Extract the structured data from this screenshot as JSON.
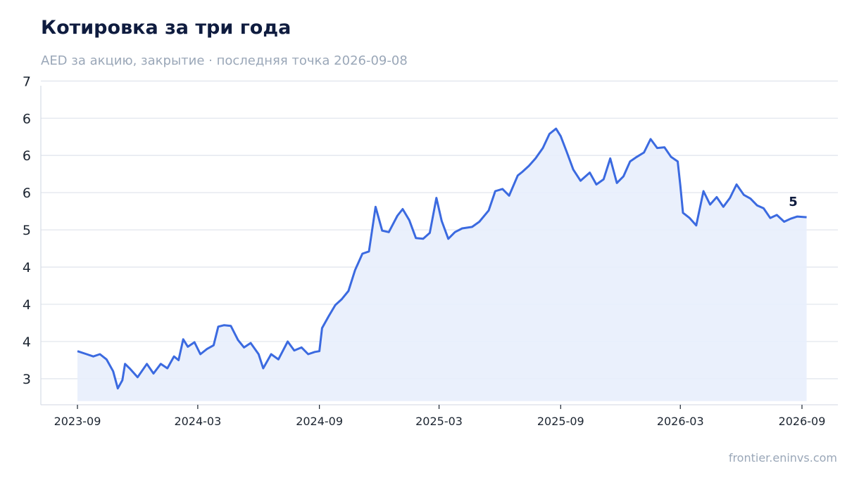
{
  "header": {
    "title": "Котировка за три года",
    "subtitle": "AED за акцию, закрытие · последняя точка 2026-09-08"
  },
  "footer": {
    "source": "frontier.eninvs.com"
  },
  "colors": {
    "line": "#3b6ae0",
    "fill": "#e8eefc",
    "grid": "#e2e6ee",
    "title": "#0f1c3f",
    "muted": "#9aa7b8"
  },
  "chart_data": {
    "type": "area",
    "ylim": [
      2.65,
      7.05
    ],
    "y_ticks": [
      {
        "value": 3.0,
        "label": "3"
      },
      {
        "value": 3.5,
        "label": "4"
      },
      {
        "value": 4.0,
        "label": "4"
      },
      {
        "value": 4.5,
        "label": "4"
      },
      {
        "value": 5.0,
        "label": "5"
      },
      {
        "value": 5.5,
        "label": "6"
      },
      {
        "value": 6.0,
        "label": "6"
      },
      {
        "value": 6.5,
        "label": "6"
      },
      {
        "value": 7.0,
        "label": "7"
      }
    ],
    "x_ticks": [
      "2023-09",
      "2024-03",
      "2024-09",
      "2025-03",
      "2025-09",
      "2026-03",
      "2026-09"
    ],
    "grid": true,
    "last_value_label": "5",
    "series": [
      {
        "points": [
          [
            "2023-09-01",
            3.37
          ],
          [
            "2023-09-15",
            3.33
          ],
          [
            "2023-09-25",
            3.3
          ],
          [
            "2023-10-05",
            3.33
          ],
          [
            "2023-10-15",
            3.26
          ],
          [
            "2023-10-25",
            3.1
          ],
          [
            "2023-11-01",
            2.87
          ],
          [
            "2023-11-08",
            2.98
          ],
          [
            "2023-11-12",
            3.2
          ],
          [
            "2023-11-20",
            3.13
          ],
          [
            "2023-12-01",
            3.02
          ],
          [
            "2023-12-15",
            3.2
          ],
          [
            "2023-12-25",
            3.07
          ],
          [
            "2024-01-05",
            3.2
          ],
          [
            "2024-01-15",
            3.14
          ],
          [
            "2024-01-25",
            3.3
          ],
          [
            "2024-02-01",
            3.25
          ],
          [
            "2024-02-08",
            3.53
          ],
          [
            "2024-02-15",
            3.43
          ],
          [
            "2024-02-25",
            3.49
          ],
          [
            "2024-03-05",
            3.33
          ],
          [
            "2024-03-15",
            3.4
          ],
          [
            "2024-03-25",
            3.45
          ],
          [
            "2024-04-01",
            3.7
          ],
          [
            "2024-04-10",
            3.72
          ],
          [
            "2024-04-20",
            3.71
          ],
          [
            "2024-05-01",
            3.52
          ],
          [
            "2024-05-10",
            3.42
          ],
          [
            "2024-05-20",
            3.48
          ],
          [
            "2024-06-01",
            3.33
          ],
          [
            "2024-06-08",
            3.14
          ],
          [
            "2024-06-20",
            3.33
          ],
          [
            "2024-07-01",
            3.26
          ],
          [
            "2024-07-15",
            3.5
          ],
          [
            "2024-07-25",
            3.38
          ],
          [
            "2024-08-05",
            3.42
          ],
          [
            "2024-08-15",
            3.33
          ],
          [
            "2024-08-25",
            3.36
          ],
          [
            "2024-09-01",
            3.37
          ],
          [
            "2024-09-05",
            3.68
          ],
          [
            "2024-09-15",
            3.84
          ],
          [
            "2024-09-25",
            3.99
          ],
          [
            "2024-10-05",
            4.07
          ],
          [
            "2024-10-15",
            4.18
          ],
          [
            "2024-10-25",
            4.46
          ],
          [
            "2024-11-05",
            4.68
          ],
          [
            "2024-11-15",
            4.71
          ],
          [
            "2024-11-25",
            5.31
          ],
          [
            "2024-12-05",
            4.99
          ],
          [
            "2024-12-15",
            4.97
          ],
          [
            "2024-12-28",
            5.19
          ],
          [
            "2025-01-05",
            5.28
          ],
          [
            "2025-01-15",
            5.13
          ],
          [
            "2025-01-25",
            4.89
          ],
          [
            "2025-02-05",
            4.88
          ],
          [
            "2025-02-15",
            4.96
          ],
          [
            "2025-02-25",
            5.43
          ],
          [
            "2025-03-05",
            5.12
          ],
          [
            "2025-03-15",
            4.88
          ],
          [
            "2025-03-25",
            4.97
          ],
          [
            "2025-04-05",
            5.02
          ],
          [
            "2025-04-20",
            5.04
          ],
          [
            "2025-05-01",
            5.11
          ],
          [
            "2025-05-15",
            5.26
          ],
          [
            "2025-05-25",
            5.52
          ],
          [
            "2025-06-05",
            5.55
          ],
          [
            "2025-06-15",
            5.46
          ],
          [
            "2025-06-28",
            5.73
          ],
          [
            "2025-07-05",
            5.78
          ],
          [
            "2025-07-15",
            5.86
          ],
          [
            "2025-07-25",
            5.96
          ],
          [
            "2025-08-05",
            6.1
          ],
          [
            "2025-08-15",
            6.29
          ],
          [
            "2025-08-25",
            6.36
          ],
          [
            "2025-09-01",
            6.26
          ],
          [
            "2025-09-10",
            6.05
          ],
          [
            "2025-09-20",
            5.81
          ],
          [
            "2025-10-01",
            5.66
          ],
          [
            "2025-10-15",
            5.77
          ],
          [
            "2025-10-25",
            5.61
          ],
          [
            "2025-11-05",
            5.68
          ],
          [
            "2025-11-15",
            5.96
          ],
          [
            "2025-11-25",
            5.63
          ],
          [
            "2025-12-05",
            5.72
          ],
          [
            "2025-12-15",
            5.92
          ],
          [
            "2025-12-25",
            5.98
          ],
          [
            "2026-01-05",
            6.04
          ],
          [
            "2026-01-15",
            6.22
          ],
          [
            "2026-01-25",
            6.1
          ],
          [
            "2026-02-05",
            6.11
          ],
          [
            "2026-02-15",
            5.98
          ],
          [
            "2026-02-25",
            5.92
          ],
          [
            "2026-03-01",
            5.6
          ],
          [
            "2026-03-05",
            5.23
          ],
          [
            "2026-03-15",
            5.16
          ],
          [
            "2026-03-25",
            5.06
          ],
          [
            "2026-04-05",
            5.52
          ],
          [
            "2026-04-15",
            5.34
          ],
          [
            "2026-04-25",
            5.44
          ],
          [
            "2026-05-05",
            5.31
          ],
          [
            "2026-05-15",
            5.43
          ],
          [
            "2026-05-25",
            5.61
          ],
          [
            "2026-06-05",
            5.47
          ],
          [
            "2026-06-15",
            5.42
          ],
          [
            "2026-06-25",
            5.33
          ],
          [
            "2026-07-05",
            5.29
          ],
          [
            "2026-07-15",
            5.16
          ],
          [
            "2026-07-25",
            5.2
          ],
          [
            "2026-08-05",
            5.11
          ],
          [
            "2026-08-15",
            5.15
          ],
          [
            "2026-08-25",
            5.18
          ],
          [
            "2026-09-08",
            5.17
          ]
        ]
      }
    ]
  }
}
